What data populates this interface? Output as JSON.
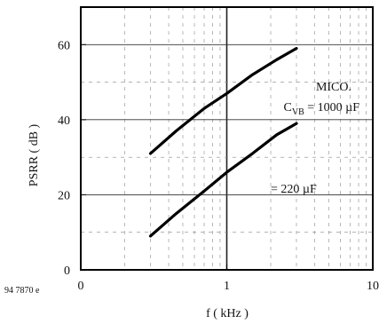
{
  "chart_data": {
    "type": "line",
    "xlabel": "f ( kHz )",
    "ylabel": "PSRR ( dB )",
    "xscale": "log",
    "xlim": [
      0.1,
      10
    ],
    "ylim": [
      0,
      70
    ],
    "grid": true,
    "x_ticks": [
      {
        "value": 0.1,
        "label": "0"
      },
      {
        "value": 1,
        "label": "1"
      },
      {
        "value": 10,
        "label": "10"
      }
    ],
    "y_ticks": [
      {
        "value": 0,
        "label": "0"
      },
      {
        "value": 20,
        "label": "20"
      },
      {
        "value": 40,
        "label": "40"
      },
      {
        "value": 60,
        "label": "60"
      }
    ],
    "series": [
      {
        "x": [
          0.3,
          0.45,
          0.7,
          1.0,
          1.5,
          2.2,
          3.0
        ],
        "y": [
          31,
          37,
          43,
          47,
          52,
          56,
          59
        ]
      },
      {
        "x": [
          0.3,
          0.45,
          0.7,
          1.0,
          1.5,
          2.2,
          3.0
        ],
        "y": [
          9,
          15,
          21,
          26,
          31,
          36,
          39
        ]
      }
    ],
    "annotations": {
      "micro_label": "MICO.",
      "cvb_symbol": "C",
      "cvb_subscript": "VB",
      "cvb_value": " = 1000 µF",
      "second_value": "= 220 µF"
    },
    "figure_id": "94 7870 e",
    "line_color": "#000000"
  }
}
